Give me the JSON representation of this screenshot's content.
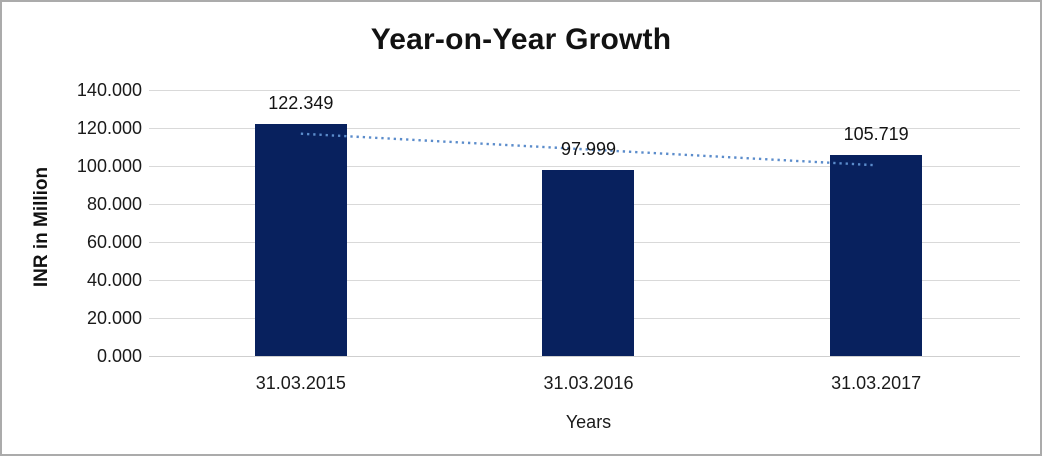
{
  "chart_data": {
    "type": "bar",
    "title": "Year-on-Year Growth",
    "xlabel": "Years",
    "ylabel": "INR in Million",
    "categories": [
      "31.03.2015",
      "31.03.2016",
      "31.03.2017"
    ],
    "values": [
      122.349,
      97.999,
      105.719
    ],
    "value_labels": [
      "122.349",
      "97.999",
      "105.719"
    ],
    "ylim": [
      0,
      140
    ],
    "ytick_step": 20,
    "ytick_labels_top_to_bottom": [
      "140.000",
      "120.000",
      "100.000",
      "80.000",
      "60.000",
      "40.000",
      "20.000",
      "0.000"
    ],
    "grid": "horizontal",
    "legend": "none",
    "bar_color": "#08215E",
    "trendline": {
      "type": "linear",
      "style": "dotted",
      "color": "#5B8CCB"
    },
    "gridline_color": "#d9d9d9",
    "frame_border_color": "#ababab"
  }
}
